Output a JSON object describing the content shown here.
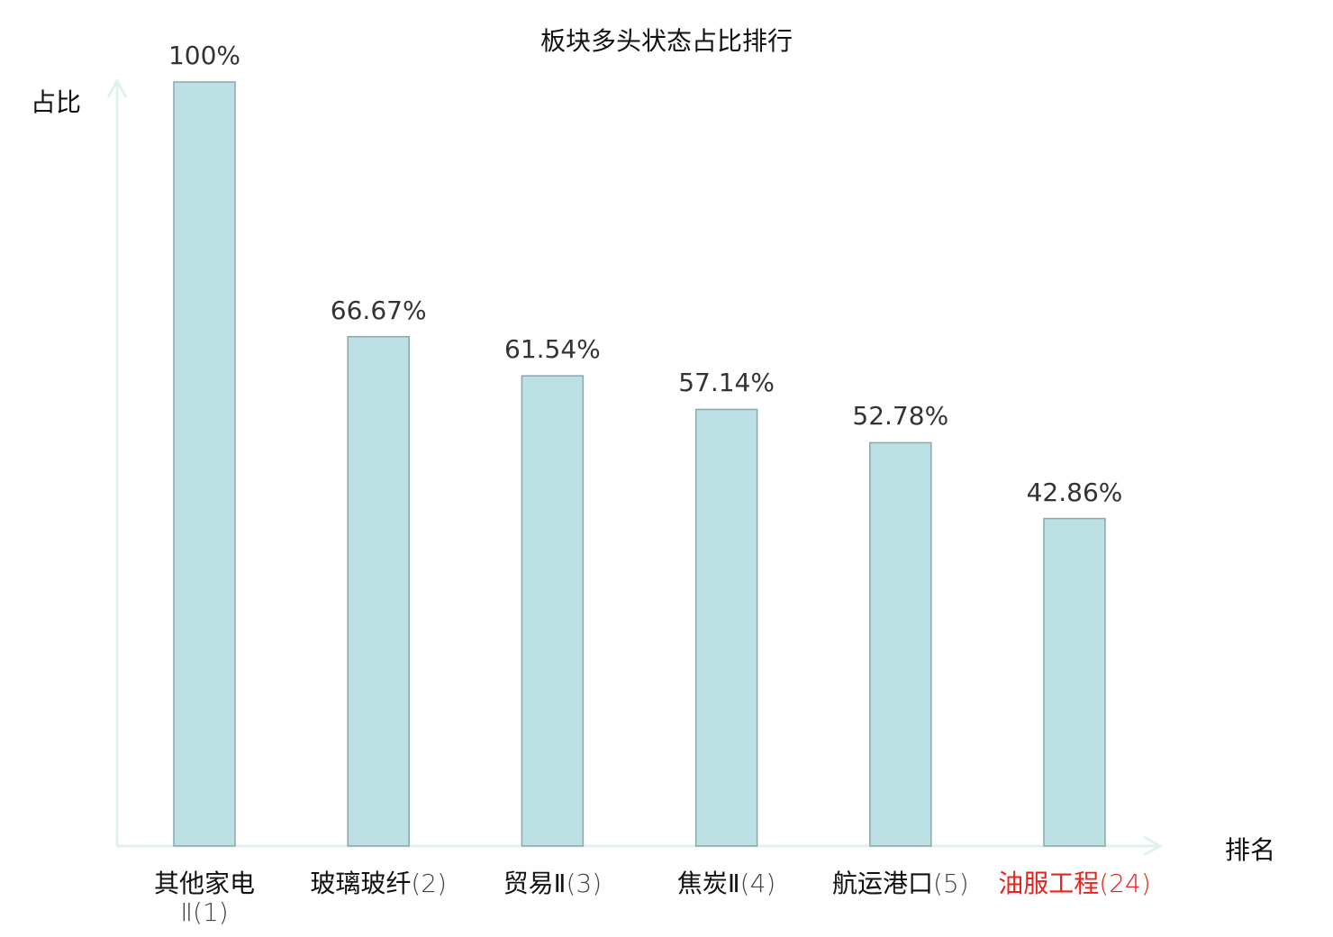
{
  "chart_data": {
    "type": "bar",
    "title": "板块多头状态占比排行",
    "xlabel": "排名",
    "ylabel": "占比",
    "ylim": [
      0,
      100
    ],
    "grid": false,
    "categories": [
      {
        "name": "其他家电",
        "rank": "Ⅱ(1)",
        "highlight": false,
        "wrap": true
      },
      {
        "name": "玻璃玻纤",
        "rank": "(2)",
        "highlight": false
      },
      {
        "name": "贸易Ⅱ",
        "rank": "(3)",
        "highlight": false
      },
      {
        "name": "焦炭Ⅱ",
        "rank": "(4)",
        "highlight": false
      },
      {
        "name": "航运港口",
        "rank": "(5)",
        "highlight": false
      },
      {
        "name": "油服工程",
        "rank": "(24)",
        "highlight": true
      }
    ],
    "values": [
      100,
      66.67,
      61.54,
      57.14,
      52.78,
      42.86
    ],
    "data_labels": [
      "100%",
      "66.67%",
      "61.54%",
      "57.14%",
      "52.78%",
      "42.86%"
    ],
    "colors": {
      "bar": "#bce0e3",
      "bar_edge": "#8aa7aa",
      "axis": "#dff2f0",
      "highlight": "#e8231f"
    }
  }
}
